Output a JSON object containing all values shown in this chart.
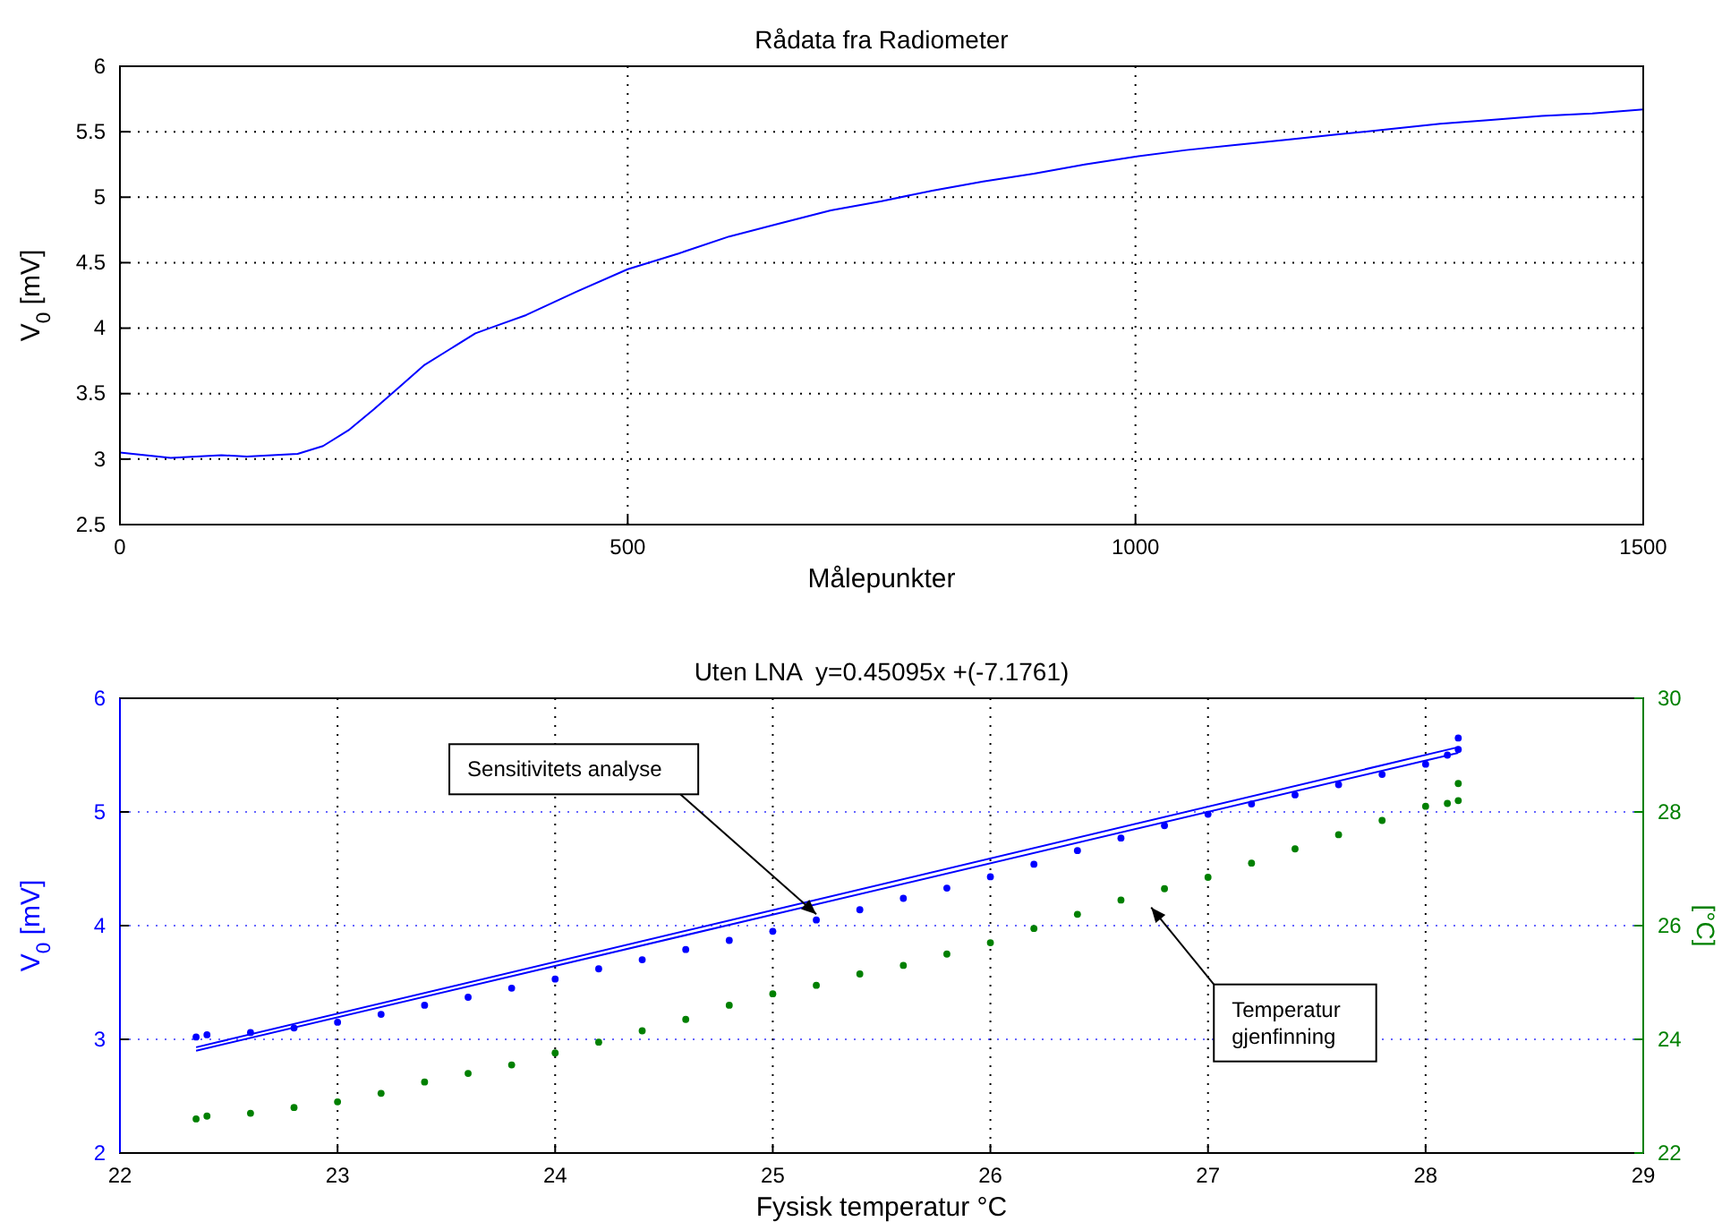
{
  "chart_data": [
    {
      "type": "line",
      "title": "Rådata fra Radiometer",
      "xlabel": "Målepunkter",
      "ylabel": "V$_{0}$ [mV]",
      "xlim": [
        0,
        1500
      ],
      "xticks": [
        0,
        500,
        1000,
        1500
      ],
      "ylim": [
        2.5,
        6
      ],
      "yticks": [
        2.5,
        3,
        3.5,
        4,
        4.5,
        5,
        5.5,
        6
      ],
      "grid": true,
      "series": [
        {
          "color": "#0000ff",
          "x": [
            0,
            25,
            50,
            75,
            100,
            125,
            150,
            175,
            200,
            225,
            250,
            275,
            300,
            325,
            350,
            375,
            400,
            450,
            500,
            550,
            600,
            650,
            700,
            750,
            800,
            850,
            900,
            950,
            1000,
            1050,
            1100,
            1150,
            1200,
            1250,
            1300,
            1350,
            1400,
            1450,
            1500
          ],
          "values": [
            3.05,
            3.03,
            3.01,
            3.02,
            3.03,
            3.02,
            3.03,
            3.04,
            3.1,
            3.22,
            3.38,
            3.55,
            3.72,
            3.84,
            3.96,
            4.03,
            4.1,
            4.28,
            4.45,
            4.57,
            4.7,
            4.8,
            4.9,
            4.97,
            5.05,
            5.12,
            5.18,
            5.25,
            5.31,
            5.36,
            5.4,
            5.44,
            5.48,
            5.52,
            5.56,
            5.59,
            5.62,
            5.64,
            5.67
          ]
        }
      ]
    },
    {
      "type": "scatter",
      "title": "Uten LNA  y=0.45095x +(-7.1761)",
      "xlabel": "Fysisk temperatur °C",
      "ylabel": "V$_{0}$ [mV]",
      "y2label": "[°C]",
      "xlim": [
        22,
        29
      ],
      "xticks": [
        22,
        23,
        24,
        25,
        26,
        27,
        28,
        29
      ],
      "ylim": [
        2,
        6
      ],
      "yticks": [
        2,
        3,
        4,
        5,
        6
      ],
      "y2lim": [
        22,
        30
      ],
      "y2ticks": [
        22,
        24,
        26,
        28,
        30
      ],
      "grid": true,
      "marker": "circle",
      "annotations": [
        {
          "text": "Sensitivitets analyse",
          "x": 25.2,
          "y": 4.1
        },
        "Temperatur gjenfinning"
      ],
      "series": [
        {
          "color": "#0000ff",
          "x": [
            22.35,
            22.4,
            22.6,
            22.8,
            23,
            23.2,
            23.4,
            23.6,
            23.8,
            24,
            24.2,
            24.4,
            24.6,
            24.8,
            25,
            25.2,
            25.4,
            25.6,
            25.8,
            26,
            26.2,
            26.4,
            26.6,
            26.8,
            27,
            27.2,
            27.4,
            27.6,
            27.8,
            28,
            28.1,
            28.15,
            28.15
          ],
          "values": [
            3.02,
            3.04,
            3.06,
            3.1,
            3.15,
            3.22,
            3.3,
            3.37,
            3.45,
            3.53,
            3.62,
            3.7,
            3.79,
            3.87,
            3.95,
            4.05,
            4.14,
            4.24,
            4.33,
            4.43,
            4.54,
            4.66,
            4.77,
            4.88,
            4.98,
            5.07,
            5.15,
            5.24,
            5.33,
            5.42,
            5.5,
            5.55,
            5.65
          ]
        },
        {
          "color": "#008000",
          "axis": "y2",
          "x": [
            22.35,
            22.4,
            22.6,
            22.8,
            23,
            23.2,
            23.4,
            23.6,
            23.8,
            24,
            24.2,
            24.4,
            24.6,
            24.8,
            25,
            25.2,
            25.4,
            25.6,
            25.8,
            26,
            26.2,
            26.4,
            26.6,
            26.8,
            27,
            27.2,
            27.4,
            27.6,
            27.8,
            28,
            28.1,
            28.15,
            28.15
          ],
          "values": [
            22.6,
            22.65,
            22.7,
            22.8,
            22.9,
            23.05,
            23.25,
            23.4,
            23.55,
            23.76,
            23.95,
            24.15,
            24.35,
            24.6,
            24.8,
            24.95,
            25.15,
            25.3,
            25.5,
            25.7,
            25.95,
            26.2,
            26.45,
            26.65,
            26.85,
            27.1,
            27.35,
            27.6,
            27.85,
            28.1,
            28.15,
            28.2,
            28.5
          ]
        },
        {
          "type": "line",
          "marker": "none",
          "color": "#0000ff",
          "x": [
            22.35,
            28.15
          ],
          "values": [
            2.9,
            5.52
          ]
        },
        {
          "type": "line",
          "marker": "none",
          "color": "#0000ff",
          "x": [
            22.35,
            28.15
          ],
          "values": [
            2.93,
            5.57
          ]
        }
      ]
    }
  ]
}
